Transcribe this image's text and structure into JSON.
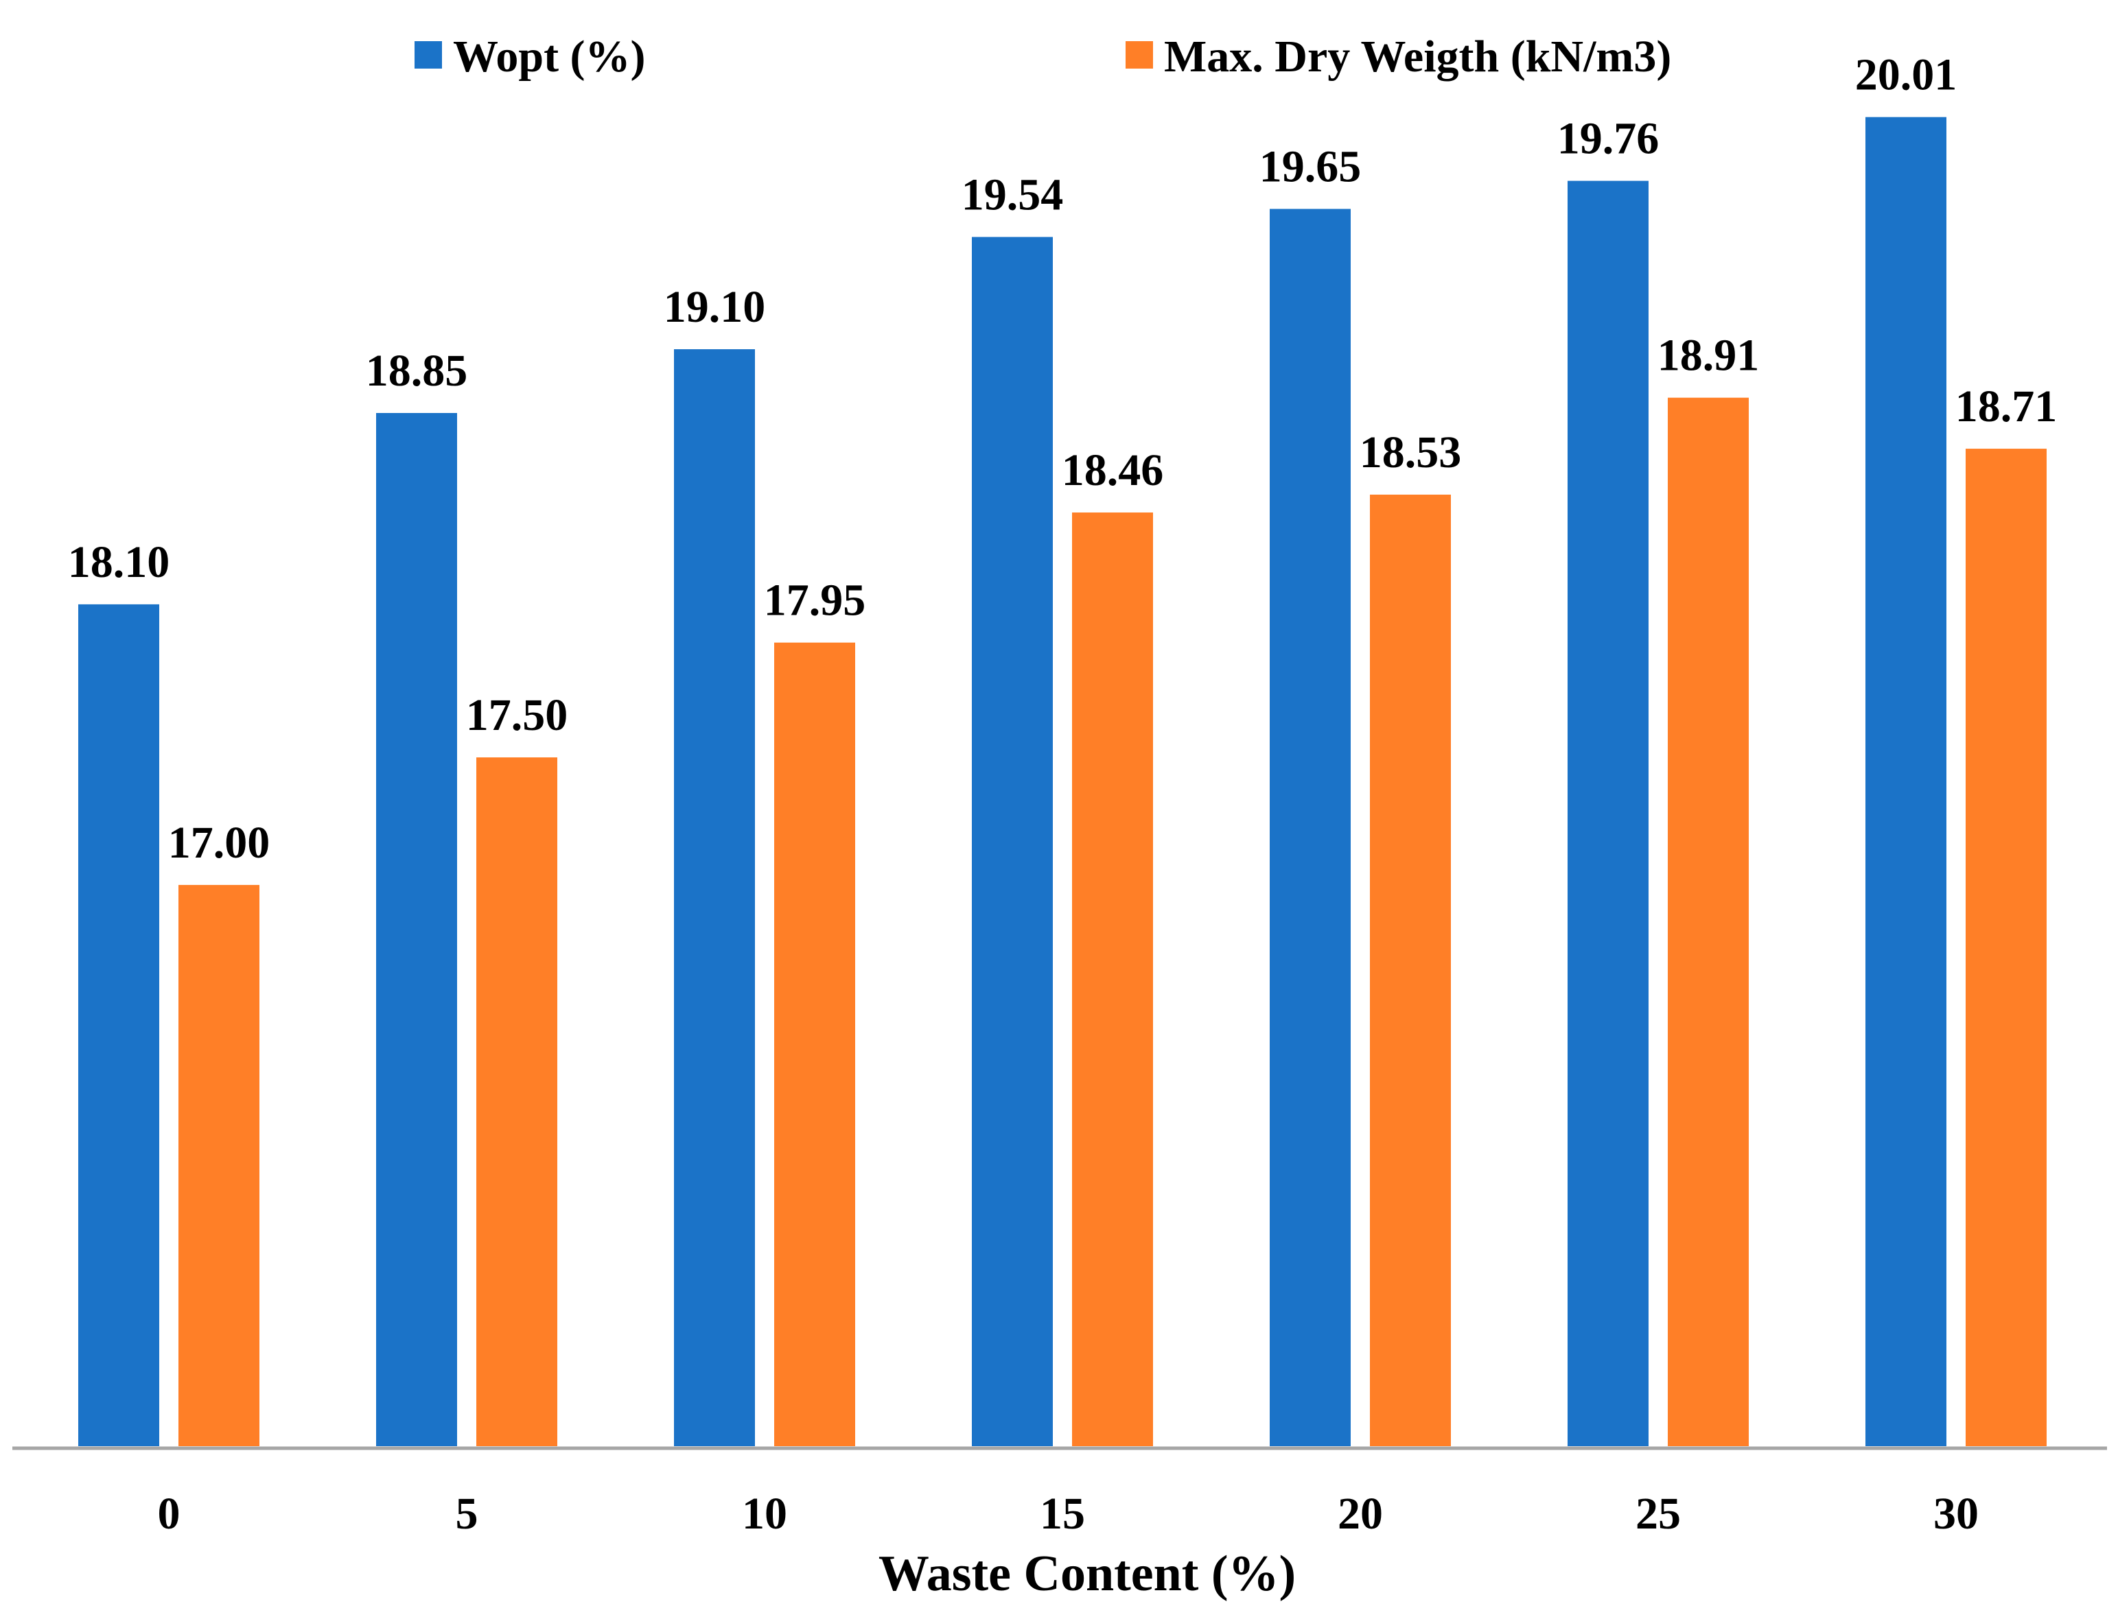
{
  "chart_data": {
    "type": "bar",
    "title": "",
    "xlabel": "Waste Content (%)",
    "ylabel": "",
    "categories": [
      "0",
      "5",
      "10",
      "15",
      "20",
      "25",
      "30"
    ],
    "series": [
      {
        "name": "Wopt (%)",
        "color": "#1B73C8",
        "values": [
          18.1,
          18.85,
          19.1,
          19.54,
          19.65,
          19.76,
          20.01
        ],
        "labels": [
          "18.10",
          "18.85",
          "19.10",
          "19.54",
          "19.65",
          "19.76",
          "20.01"
        ]
      },
      {
        "name": "Max. Dry Weigth (kN/m3)",
        "color": "#FF7F27",
        "values": [
          17.0,
          17.5,
          17.95,
          18.46,
          18.53,
          18.91,
          18.71
        ],
        "labels": [
          "17.00",
          "17.50",
          "17.95",
          "18.46",
          "18.53",
          "18.91",
          "18.71"
        ]
      }
    ],
    "ylim": [
      14.8,
      20.2
    ],
    "grid": false,
    "legend": "top-center"
  }
}
